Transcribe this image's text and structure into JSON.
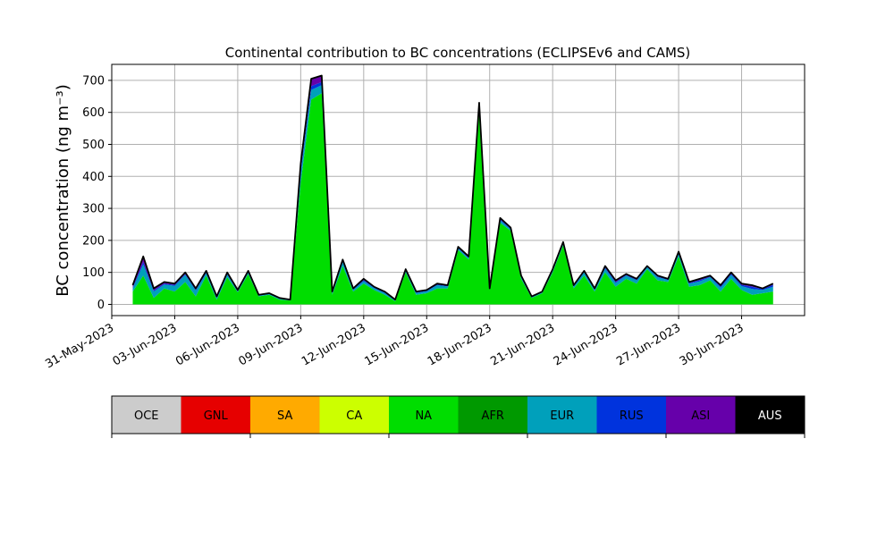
{
  "chart_data": {
    "type": "area",
    "title": "Continental contribution to BC concentrations (ECLIPSEv6 and CAMS)",
    "xlabel": "",
    "ylabel": "BC concentration (ng m⁻³)",
    "xlim": [
      "2023-05-31",
      "2023-07-03"
    ],
    "ylim": [
      -35,
      750
    ],
    "grid": true,
    "stacked": true,
    "x_ticks": [
      "31-May-2023",
      "03-Jun-2023",
      "06-Jun-2023",
      "09-Jun-2023",
      "12-Jun-2023",
      "15-Jun-2023",
      "18-Jun-2023",
      "21-Jun-2023",
      "24-Jun-2023",
      "27-Jun-2023",
      "30-Jun-2023"
    ],
    "y_ticks": [
      0,
      100,
      200,
      300,
      400,
      500,
      600,
      700
    ],
    "x": [
      "2023-06-01",
      "2023-06-01T12:00",
      "2023-06-02",
      "2023-06-02T12:00",
      "2023-06-03",
      "2023-06-03T12:00",
      "2023-06-04",
      "2023-06-04T12:00",
      "2023-06-05",
      "2023-06-05T12:00",
      "2023-06-06",
      "2023-06-06T12:00",
      "2023-06-07",
      "2023-06-07T12:00",
      "2023-06-08",
      "2023-06-08T12:00",
      "2023-06-09",
      "2023-06-09T12:00",
      "2023-06-10",
      "2023-06-10T12:00",
      "2023-06-11",
      "2023-06-11T12:00",
      "2023-06-12",
      "2023-06-12T12:00",
      "2023-06-13",
      "2023-06-13T12:00",
      "2023-06-14",
      "2023-06-14T12:00",
      "2023-06-15",
      "2023-06-15T12:00",
      "2023-06-16",
      "2023-06-16T12:00",
      "2023-06-17",
      "2023-06-17T12:00",
      "2023-06-18",
      "2023-06-18T12:00",
      "2023-06-19",
      "2023-06-19T12:00",
      "2023-06-20",
      "2023-06-20T12:00",
      "2023-06-21",
      "2023-06-21T12:00",
      "2023-06-22",
      "2023-06-22T12:00",
      "2023-06-23",
      "2023-06-23T12:00",
      "2023-06-24",
      "2023-06-24T12:00",
      "2023-06-25",
      "2023-06-25T12:00",
      "2023-06-26",
      "2023-06-26T12:00",
      "2023-06-27",
      "2023-06-27T12:00",
      "2023-06-28",
      "2023-06-28T12:00",
      "2023-06-29",
      "2023-06-29T12:00",
      "2023-06-30",
      "2023-06-30T12:00",
      "2023-07-01",
      "2023-07-01T12:00"
    ],
    "total": [
      60,
      150,
      50,
      70,
      65,
      100,
      50,
      105,
      25,
      100,
      45,
      105,
      30,
      35,
      20,
      15,
      440,
      705,
      715,
      40,
      140,
      50,
      80,
      55,
      40,
      15,
      110,
      40,
      45,
      65,
      60,
      180,
      150,
      630,
      50,
      270,
      240,
      90,
      25,
      40,
      110,
      195,
      60,
      105,
      50,
      120,
      75,
      95,
      80,
      120,
      90,
      80,
      165,
      70,
      80,
      90,
      60,
      100,
      65,
      60,
      50,
      65
    ],
    "series": [
      {
        "name": "OCE",
        "values": [
          0,
          0,
          0,
          0,
          0,
          0,
          0,
          0,
          0,
          0,
          0,
          0,
          0,
          0,
          0,
          0,
          0,
          0,
          0,
          0,
          0,
          0,
          0,
          0,
          0,
          0,
          0,
          0,
          0,
          0,
          0,
          0,
          0,
          0,
          0,
          0,
          0,
          0,
          0,
          0,
          0,
          0,
          0,
          0,
          0,
          0,
          0,
          0,
          0,
          0,
          0,
          0,
          0,
          0,
          0,
          0,
          0,
          0,
          0,
          0,
          0,
          0
        ]
      },
      {
        "name": "GNL",
        "values": [
          0,
          0,
          0,
          0,
          0,
          0,
          0,
          0,
          0,
          0,
          0,
          0,
          0,
          0,
          0,
          0,
          0,
          0,
          0,
          0,
          0,
          0,
          0,
          0,
          0,
          0,
          0,
          0,
          0,
          0,
          0,
          0,
          0,
          0,
          0,
          0,
          0,
          0,
          0,
          0,
          0,
          0,
          0,
          0,
          0,
          0,
          0,
          0,
          0,
          0,
          0,
          0,
          0,
          0,
          0,
          0,
          0,
          0,
          0,
          0,
          0,
          0
        ]
      },
      {
        "name": "SA",
        "values": [
          0,
          0,
          0,
          0,
          0,
          0,
          0,
          0,
          0,
          0,
          0,
          0,
          0,
          0,
          0,
          0,
          0,
          0,
          0,
          0,
          0,
          0,
          0,
          0,
          0,
          0,
          0,
          0,
          0,
          0,
          0,
          0,
          0,
          0,
          0,
          0,
          0,
          0,
          0,
          0,
          0,
          0,
          0,
          0,
          0,
          0,
          0,
          0,
          0,
          0,
          0,
          0,
          0,
          0,
          0,
          0,
          0,
          0,
          0,
          0,
          0,
          0
        ]
      },
      {
        "name": "CA",
        "values": [
          0,
          0,
          0,
          0,
          0,
          0,
          0,
          0,
          0,
          0,
          0,
          0,
          0,
          0,
          0,
          0,
          0,
          0,
          0,
          0,
          0,
          0,
          0,
          0,
          0,
          0,
          0,
          0,
          0,
          0,
          0,
          0,
          0,
          0,
          0,
          0,
          0,
          0,
          0,
          0,
          0,
          0,
          0,
          0,
          0,
          0,
          0,
          0,
          0,
          0,
          0,
          0,
          0,
          0,
          0,
          0,
          0,
          0,
          0,
          0,
          0,
          0
        ]
      },
      {
        "name": "NA",
        "values": [
          40,
          90,
          20,
          50,
          40,
          70,
          25,
          90,
          15,
          85,
          38,
          95,
          25,
          30,
          15,
          12,
          380,
          640,
          660,
          30,
          120,
          40,
          65,
          45,
          30,
          10,
          100,
          30,
          35,
          50,
          50,
          170,
          140,
          600,
          45,
          255,
          230,
          80,
          20,
          35,
          100,
          185,
          50,
          90,
          40,
          100,
          55,
          80,
          65,
          110,
          75,
          70,
          150,
          55,
          60,
          75,
          40,
          80,
          45,
          30,
          35,
          40
        ]
      },
      {
        "name": "AFR",
        "values": [
          0,
          0,
          0,
          0,
          0,
          0,
          0,
          0,
          0,
          0,
          0,
          0,
          0,
          0,
          0,
          0,
          0,
          0,
          0,
          0,
          0,
          0,
          0,
          0,
          0,
          0,
          0,
          0,
          0,
          0,
          0,
          0,
          0,
          0,
          0,
          0,
          0,
          0,
          0,
          0,
          0,
          0,
          0,
          0,
          0,
          0,
          0,
          0,
          0,
          0,
          0,
          0,
          0,
          0,
          0,
          0,
          0,
          0,
          0,
          0,
          0,
          0
        ]
      },
      {
        "name": "EUR",
        "values": [
          10,
          35,
          20,
          12,
          18,
          22,
          18,
          8,
          6,
          8,
          4,
          5,
          3,
          3,
          3,
          2,
          30,
          30,
          25,
          5,
          12,
          6,
          8,
          6,
          6,
          3,
          6,
          6,
          6,
          10,
          6,
          5,
          5,
          15,
          3,
          8,
          5,
          5,
          3,
          3,
          5,
          5,
          6,
          10,
          6,
          12,
          12,
          10,
          10,
          6,
          10,
          6,
          8,
          10,
          12,
          10,
          12,
          12,
          12,
          18,
          10,
          15
        ]
      },
      {
        "name": "RUS",
        "values": [
          3,
          8,
          4,
          3,
          3,
          3,
          3,
          3,
          2,
          3,
          1,
          2,
          1,
          1,
          1,
          1,
          10,
          12,
          10,
          2,
          3,
          2,
          3,
          2,
          2,
          1,
          2,
          2,
          2,
          2,
          2,
          2,
          2,
          5,
          1,
          3,
          2,
          2,
          1,
          1,
          2,
          2,
          2,
          2,
          2,
          3,
          3,
          2,
          2,
          2,
          2,
          2,
          3,
          2,
          4,
          2,
          4,
          4,
          4,
          7,
          3,
          6
        ]
      },
      {
        "name": "ASI",
        "values": [
          7,
          17,
          6,
          5,
          4,
          5,
          4,
          4,
          2,
          4,
          2,
          3,
          1,
          1,
          1,
          0,
          20,
          23,
          20,
          3,
          5,
          2,
          4,
          2,
          2,
          1,
          2,
          2,
          2,
          3,
          2,
          3,
          3,
          10,
          1,
          4,
          3,
          3,
          1,
          1,
          3,
          3,
          2,
          3,
          2,
          5,
          5,
          3,
          3,
          2,
          3,
          2,
          4,
          3,
          4,
          3,
          4,
          4,
          4,
          5,
          2,
          4
        ]
      },
      {
        "name": "AUS",
        "values": [
          0,
          0,
          0,
          0,
          0,
          0,
          0,
          0,
          0,
          0,
          0,
          0,
          0,
          0,
          0,
          0,
          0,
          0,
          0,
          0,
          0,
          0,
          0,
          0,
          0,
          0,
          0,
          0,
          0,
          0,
          0,
          0,
          0,
          0,
          0,
          0,
          0,
          0,
          0,
          0,
          0,
          0,
          0,
          0,
          0,
          0,
          0,
          0,
          0,
          0,
          0,
          0,
          0,
          0,
          0,
          0,
          0,
          0,
          0,
          0,
          0,
          0
        ]
      }
    ],
    "legend": {
      "placement": "bottom",
      "items": [
        {
          "label": "OCE",
          "color": "#cccccc"
        },
        {
          "label": "GNL",
          "color": "#e60000"
        },
        {
          "label": "SA",
          "color": "#ffaa00"
        },
        {
          "label": "CA",
          "color": "#ccff00"
        },
        {
          "label": "NA",
          "color": "#00dd00"
        },
        {
          "label": "AFR",
          "color": "#009900"
        },
        {
          "label": "EUR",
          "color": "#00a0bb"
        },
        {
          "label": "RUS",
          "color": "#0033dd"
        },
        {
          "label": "ASI",
          "color": "#6600aa"
        },
        {
          "label": "AUS",
          "color": "#000000"
        }
      ]
    },
    "total_line_color": "#000000",
    "grid_color": "#b0b0b0"
  }
}
